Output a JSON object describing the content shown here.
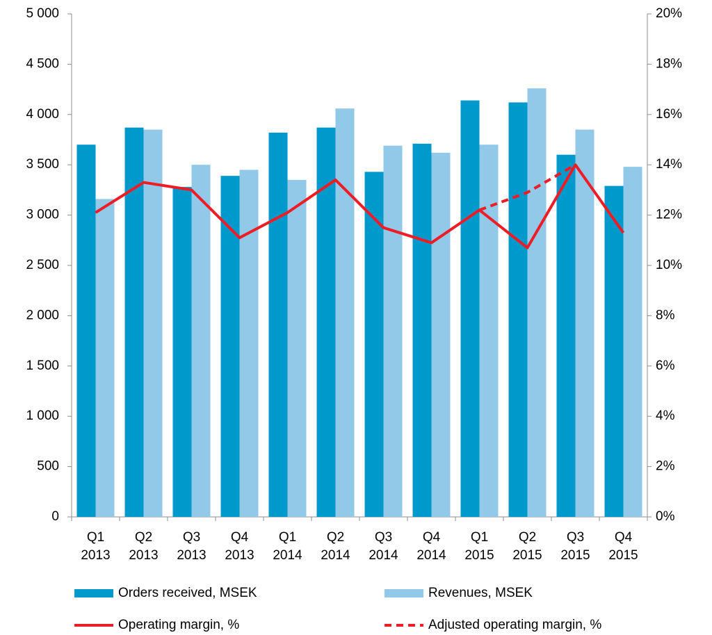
{
  "chart_data": {
    "type": "bar",
    "categories": [
      [
        "Q1",
        "2013"
      ],
      [
        "Q2",
        "2013"
      ],
      [
        "Q3",
        "2013"
      ],
      [
        "Q4",
        "2013"
      ],
      [
        "Q1",
        "2014"
      ],
      [
        "Q2",
        "2014"
      ],
      [
        "Q3",
        "2014"
      ],
      [
        "Q4",
        "2014"
      ],
      [
        "Q1",
        "2015"
      ],
      [
        "Q2",
        "2015"
      ],
      [
        "Q3",
        "2015"
      ],
      [
        "Q4",
        "2015"
      ]
    ],
    "series": [
      {
        "name": "Orders received, MSEK",
        "type": "bar",
        "color": "#0099cc",
        "values": [
          3700,
          3870,
          3280,
          3390,
          3820,
          3870,
          3430,
          3710,
          4140,
          4120,
          3600,
          3290
        ]
      },
      {
        "name": "Revenues, MSEK",
        "type": "bar",
        "color": "#92c9e8",
        "values": [
          3160,
          3850,
          3500,
          3450,
          3350,
          4060,
          3690,
          3620,
          3700,
          4260,
          3850,
          3480
        ]
      },
      {
        "name": "Operating margin, %",
        "type": "line",
        "axis": "y2",
        "color": "#ee1c25",
        "dashed": false,
        "values": [
          12.1,
          13.3,
          13.0,
          11.1,
          12.1,
          13.4,
          11.5,
          10.9,
          12.2,
          10.7,
          14.0,
          11.3
        ]
      },
      {
        "name": "Adjusted operating margin, %",
        "type": "line",
        "axis": "y2",
        "color": "#ee1c25",
        "dashed": true,
        "values": [
          null,
          null,
          null,
          null,
          null,
          null,
          null,
          null,
          12.2,
          12.9,
          14.0,
          null
        ]
      }
    ],
    "ylim": [
      0,
      5000
    ],
    "yticks": [
      0,
      500,
      {
        "value": 1000,
        "label": "1 000"
      },
      {
        "value": 1500,
        "label": "1 500"
      },
      {
        "value": 2000,
        "label": "2 000"
      },
      {
        "value": 2500,
        "label": "2 500"
      },
      {
        "value": 3000,
        "label": "3 000"
      },
      {
        "value": 3500,
        "label": "3 500"
      },
      {
        "value": 4000,
        "label": "4 000"
      },
      {
        "value": 4500,
        "label": "4 500"
      },
      {
        "value": 5000,
        "label": "5 000"
      }
    ],
    "y2lim": [
      0,
      20
    ],
    "y2ticks": [
      {
        "value": 0,
        "label": "0%"
      },
      {
        "value": 2,
        "label": "2%"
      },
      {
        "value": 4,
        "label": "4%"
      },
      {
        "value": 6,
        "label": "6%"
      },
      {
        "value": 8,
        "label": "8%"
      },
      {
        "value": 10,
        "label": "10%"
      },
      {
        "value": 12,
        "label": "12%"
      },
      {
        "value": 14,
        "label": "14%"
      },
      {
        "value": 16,
        "label": "16%"
      },
      {
        "value": 18,
        "label": "18%"
      },
      {
        "value": 20,
        "label": "20%"
      }
    ],
    "grid": false,
    "legend": "bottom"
  }
}
